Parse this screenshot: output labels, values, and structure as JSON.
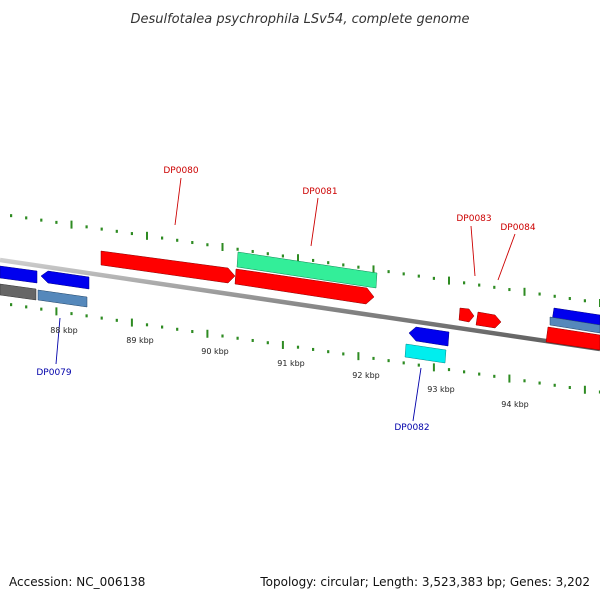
{
  "title": "Desulfotalea psychrophila LSv54, complete genome",
  "footer": {
    "accession": "Accession: NC_006138",
    "summary": "Topology: circular; Length: 3,523,383 bp; Genes: 3,202"
  },
  "colors": {
    "forward_label": "#cc0000",
    "reverse_label": "#0000aa",
    "forward_gene": "#ff0000",
    "reverse_gene": "#0000ee",
    "teal_gene": "#33ee99",
    "cyan_gene": "#00eeee",
    "steel_gene": "#5588bb",
    "gray_gene": "#666666",
    "backbone": "#888888",
    "tick": "#2e8b22"
  },
  "axis": {
    "unit": "kbp",
    "ticks": [
      {
        "kbp": 88,
        "label": "88 kbp"
      },
      {
        "kbp": 89,
        "label": "89 kbp"
      },
      {
        "kbp": 90,
        "label": "90 kbp"
      },
      {
        "kbp": 91,
        "label": "91 kbp"
      },
      {
        "kbp": 92,
        "label": "92 kbp"
      },
      {
        "kbp": 93,
        "label": "93 kbp"
      },
      {
        "kbp": 94,
        "label": "94 kbp"
      }
    ]
  },
  "gene_labels": [
    {
      "name": "DP0079",
      "strand": "reverse"
    },
    {
      "name": "DP0080",
      "strand": "forward"
    },
    {
      "name": "DP0081",
      "strand": "forward"
    },
    {
      "name": "DP0082",
      "strand": "reverse"
    },
    {
      "name": "DP0083",
      "strand": "forward"
    },
    {
      "name": "DP0084",
      "strand": "forward"
    }
  ]
}
